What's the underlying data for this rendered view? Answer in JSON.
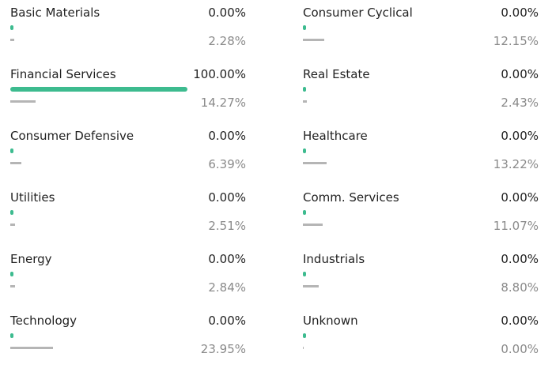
{
  "sectors": [
    {
      "name": "Basic Materials",
      "value": 0,
      "label": "0.00%",
      "benchmark": 2.28,
      "benchmark_label": "2.28%"
    },
    {
      "name": "Financial Services",
      "value": 100,
      "label": "100.00%",
      "benchmark": 14.27,
      "benchmark_label": "14.27%"
    },
    {
      "name": "Consumer Defensive",
      "value": 0,
      "label": "0.00%",
      "benchmark": 6.39,
      "benchmark_label": "6.39%"
    },
    {
      "name": "Utilities",
      "value": 0,
      "label": "0.00%",
      "benchmark": 2.51,
      "benchmark_label": "2.51%"
    },
    {
      "name": "Energy",
      "value": 0,
      "label": "0.00%",
      "benchmark": 2.84,
      "benchmark_label": "2.84%"
    },
    {
      "name": "Technology",
      "value": 0,
      "label": "0.00%",
      "benchmark": 23.95,
      "benchmark_label": "23.95%"
    },
    {
      "name": "Consumer Cyclical",
      "value": 0,
      "label": "0.00%",
      "benchmark": 12.15,
      "benchmark_label": "12.15%"
    },
    {
      "name": "Real Estate",
      "value": 0,
      "label": "0.00%",
      "benchmark": 2.43,
      "benchmark_label": "2.43%"
    },
    {
      "name": "Healthcare",
      "value": 0,
      "label": "0.00%",
      "benchmark": 13.22,
      "benchmark_label": "13.22%"
    },
    {
      "name": "Comm. Services",
      "value": 0,
      "label": "0.00%",
      "benchmark": 11.07,
      "benchmark_label": "11.07%"
    },
    {
      "name": "Industrials",
      "value": 0,
      "label": "0.00%",
      "benchmark": 8.8,
      "benchmark_label": "8.80%"
    },
    {
      "name": "Unknown",
      "value": 0,
      "label": "0.00%",
      "benchmark": 0,
      "benchmark_label": "0.00%"
    }
  ]
}
